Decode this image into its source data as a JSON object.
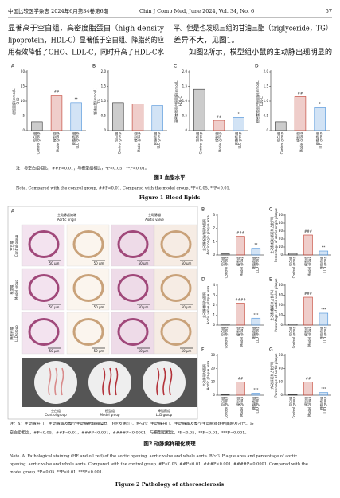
{
  "header": {
    "journal_cn": "中国比较医学杂志 2024年6月第34卷第6期",
    "journal_en": "Chin J Comp Med, June 2024, Vol. 34, No. 6",
    "page": "57"
  },
  "body": {
    "left": [
      "显著高于空白组，高密度脂蛋白（high density",
      "lipoprotein，HDL-C）显著低于空白组。降脂药的应",
      "用有效降低了CHO、LDL-C，同时升高了HDL-C水"
    ],
    "right": [
      "平。但是也发现三组的甘油三酯（triglyceride，TG）",
      "差异不大，见图1。",
      "如图2所示，模型组小鼠的主动脉出现明显的"
    ]
  },
  "figure1": {
    "categories_cn": [
      "空白组",
      "模型组",
      "降脂药组"
    ],
    "categories_en": [
      "Control group",
      "Model group",
      "LLD group"
    ],
    "colors": [
      "#333333",
      "#c0392b",
      "#4a90d9"
    ],
    "panels": [
      {
        "label": "A",
        "ylabel": "总胆固醇(mmol/L)",
        "ylabel_en": "CHO",
        "values": [
          3,
          12,
          9.5
        ],
        "markers": [
          null,
          "##",
          "**"
        ],
        "ylim": [
          0,
          20
        ],
        "yticks": [
          0,
          5,
          10,
          15,
          20
        ]
      },
      {
        "label": "B",
        "ylabel": "甘油三酯(mmol/L)",
        "ylabel_en": "TG",
        "values": [
          0.95,
          0.9,
          0.85
        ],
        "markers": [
          null,
          null,
          null
        ],
        "ylim": [
          0,
          2
        ],
        "yticks": [
          0,
          0.5,
          {
            "value": 1,
            "label": "1.0"
          },
          1.5,
          {
            "value": 2,
            "label": "2.0"
          }
        ]
      },
      {
        "label": "C",
        "ylabel": "高密度脂蛋白胆固醇(mmol/L)",
        "ylabel_en": "HDL-C",
        "values": [
          1.4,
          0.35,
          0.45
        ],
        "markers": [
          null,
          "##",
          "*"
        ],
        "ylim": [
          0,
          2
        ],
        "yticks": [
          0,
          0.5,
          {
            "value": 1,
            "label": "1.0"
          },
          1.5,
          {
            "value": 2,
            "label": "2.0"
          }
        ]
      },
      {
        "label": "D",
        "ylabel": "低密度脂蛋白胆固醇(mmol/L)",
        "ylabel_en": "LDL-C",
        "values": [
          0.3,
          1.15,
          0.8
        ],
        "markers": [
          null,
          "##",
          "*"
        ],
        "ylim": [
          0,
          2
        ],
        "yticks": [
          0,
          0.5,
          {
            "value": 1,
            "label": "1.0"
          },
          1.5,
          {
            "value": 2,
            "label": "2.0"
          }
        ]
      }
    ],
    "note_cn": "注：与空白组相比，##P<0.01；与模型组相比，*P<0.05，**P<0.01。",
    "title_cn": "图1  血脂水平",
    "note_en": "Note. Compared with the control group, ##P<0.01. Compared with the model group, *P<0.05, **P<0.01.",
    "title_en": "Figure 1  Blood lipids"
  },
  "figure2": {
    "a": {
      "label": "A",
      "columns": [
        {
          "cn": "主动脉起始端",
          "en": "Aortic origin"
        },
        {
          "cn": "主动脉瓣",
          "en": "Aortic valve"
        }
      ],
      "rows": [
        {
          "cn": "空白组",
          "en": "Control group"
        },
        {
          "cn": "模型组",
          "en": "Model group"
        },
        {
          "cn": "降脂药组",
          "en": "LLD group"
        }
      ],
      "scale": "50 μm"
    },
    "categories_cn": [
      "空白组",
      "模型组",
      "降脂药组"
    ],
    "categories_en": [
      "Control group",
      "Model group",
      "LLD group"
    ],
    "colors": [
      "#333333",
      "#c0392b",
      "#4a90d9"
    ],
    "panels": [
      {
        "label": "B",
        "ylabel": "主动脉起始端斑块面积",
        "ylabel_en": "Aortic origin plaque area",
        "values": [
          0.1,
          1.4,
          0.5
        ],
        "markers": [
          null,
          "###",
          "**"
        ],
        "ylim": [
          0,
          3
        ],
        "yticks": [
          0,
          1,
          2,
          3
        ]
      },
      {
        "label": "C",
        "ylabel": "主动脉起始端斑块占比(%)",
        "ylabel_en": "Percentage of aortic origin plaque",
        "values": [
          2,
          25,
          5
        ],
        "markers": [
          null,
          "###",
          "**"
        ],
        "ylim": [
          0,
          50
        ],
        "yticks": [
          0,
          10,
          20,
          30,
          40,
          50
        ]
      },
      {
        "label": "D",
        "ylabel": "主动脉瓣斑块面积",
        "ylabel_en": "Aortic valve plaque area",
        "values": [
          0.1,
          2.2,
          0.7
        ],
        "markers": [
          null,
          "####",
          "***"
        ],
        "ylim": [
          0,
          4
        ],
        "yticks": [
          0,
          1,
          2,
          3,
          4
        ]
      },
      {
        "label": "E",
        "ylabel": "主动脉瓣斑块占比(%)",
        "ylabel_en": "Percentage of aortic valve plaque",
        "values": [
          1,
          28,
          12
        ],
        "markers": [
          null,
          "###",
          "***"
        ],
        "ylim": [
          0,
          40
        ],
        "yticks": [
          0,
          10,
          20,
          30,
          40
        ]
      },
      {
        "label": "F",
        "ylabel": "大动脉斑块面积",
        "ylabel_en": "Aortic plaque area",
        "values": [
          0.5,
          10,
          1.5
        ],
        "markers": [
          null,
          "##",
          "***"
        ],
        "ylim": [
          0,
          30
        ],
        "yticks": [
          0,
          10,
          20,
          30
        ]
      },
      {
        "label": "G",
        "ylabel": "大动脉斑块占比(%)",
        "ylabel_en": "Percentage of aortic plaque",
        "values": [
          1,
          20,
          4
        ],
        "markers": [
          null,
          "##",
          "***"
        ],
        "ylim": [
          0,
          60
        ],
        "yticks": [
          0,
          20,
          40,
          60
        ]
      }
    ],
    "note_cn": [
      "注：A：主动脉开口、主动脉瓣及整个主动脉的病理染色（HE及油红）。B～G：主动脉开口、主动脉瓣及整个主动脉斑块的面积及占比。与",
      "空白组相比，#P<0.05，##P<0.01，###P<0.001，####P<0.0001；与模型组相比，*P<0.05，**P<0.01，***P<0.001。"
    ],
    "title_cn": "图2  动脉粥样硬化病理",
    "note_en": [
      "Note. A, Pathological staining (HE and oil red) of the aortic opening, aortic valve and whole aorta. B～G, Plaque area and percentage of aortic",
      "opening, aortic valve and whole aorta. Compared with the control group, #P<0.05, ##P<0.01, ###P<0.001, ####P<0.0001. Compared with the",
      "model group, *P<0.05, **P<0.01, ***P<0.001."
    ],
    "title_en": "Figure 2  Pathology of atherosclerosis"
  }
}
